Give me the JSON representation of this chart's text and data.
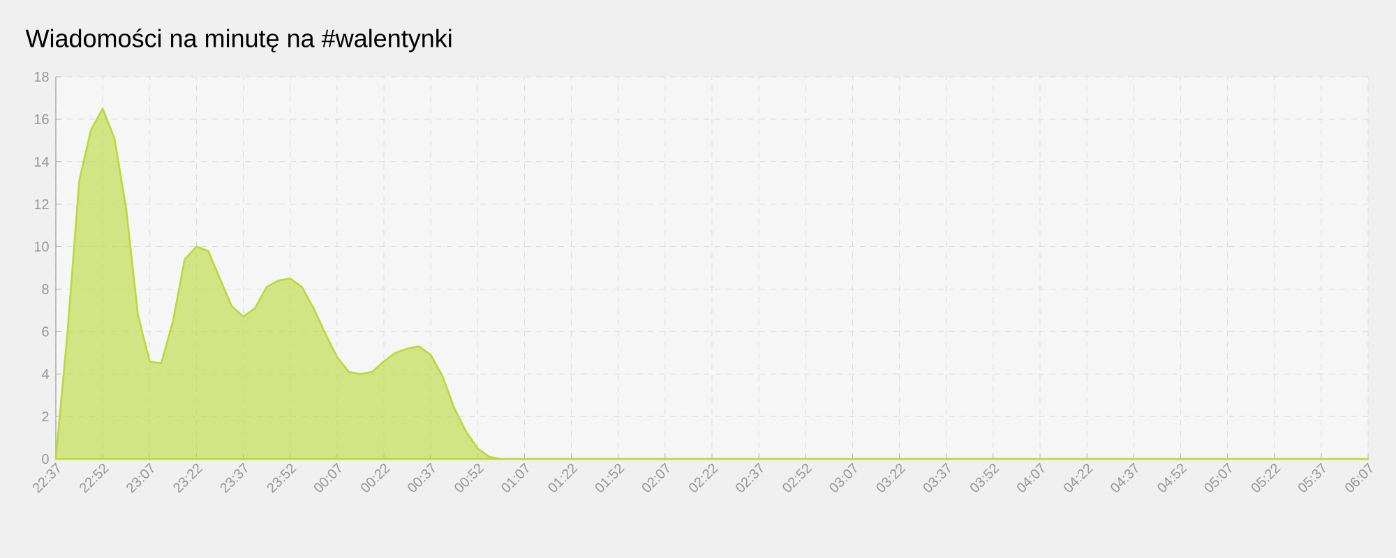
{
  "chart_data": {
    "type": "area",
    "title": "Wiadomości na minutę na #walentynki",
    "categories": [
      "22:37",
      null,
      null,
      null,
      "22:52",
      null,
      null,
      null,
      "23:07",
      null,
      null,
      null,
      "23:22",
      null,
      null,
      null,
      "23:37",
      null,
      null,
      null,
      "23:52",
      null,
      null,
      null,
      "00:07",
      null,
      null,
      null,
      "00:22",
      null,
      null,
      null,
      "00:37",
      null,
      null,
      null,
      "00:52",
      null,
      null,
      null,
      "01:07",
      null,
      null,
      null,
      "01:22",
      null,
      null,
      null,
      "01:52",
      null,
      null,
      null,
      "02:07",
      null,
      null,
      null,
      "02:22",
      null,
      null,
      null,
      "02:37",
      null,
      null,
      null,
      "02:52",
      null,
      null,
      null,
      "03:07",
      null,
      null,
      null,
      "03:22",
      null,
      null,
      null,
      "03:37",
      null,
      null,
      null,
      "03:52",
      null,
      null,
      null,
      "04:07",
      null,
      null,
      null,
      "04:22",
      null,
      null,
      null,
      "04:37",
      null,
      null,
      null,
      "04:52",
      null,
      null,
      null,
      "05:07",
      null,
      null,
      null,
      "05:22",
      null,
      null,
      null,
      "05:37",
      null,
      null,
      null,
      "06:07"
    ],
    "values": [
      0,
      6,
      13.1,
      15.5,
      16.5,
      15.1,
      11.8,
      6.8,
      4.6,
      4.5,
      6.5,
      9.4,
      10,
      9.8,
      8.5,
      7.2,
      6.7,
      7.1,
      8.1,
      8.4,
      8.5,
      8.1,
      7.1,
      5.9,
      4.8,
      4.1,
      4,
      4.1,
      4.6,
      5,
      5.2,
      5.3,
      4.9,
      3.9,
      2.4,
      1.3,
      0.5,
      0.1,
      0,
      0,
      0,
      0,
      0,
      0,
      0,
      0,
      0,
      0,
      0,
      0,
      0,
      0,
      0,
      0,
      0,
      0,
      0,
      0,
      0,
      0,
      0,
      0,
      0,
      0,
      0,
      0,
      0,
      0,
      0,
      0,
      0,
      0,
      0,
      0,
      0,
      0,
      0,
      0,
      0,
      0,
      0,
      0,
      0,
      0,
      0,
      0,
      0,
      0,
      0,
      0,
      0,
      0,
      0,
      0,
      0,
      0,
      0,
      0,
      0,
      0,
      0,
      0,
      0,
      0,
      0,
      0,
      0,
      0,
      0,
      0,
      0,
      0,
      0
    ],
    "color": "#bcd83a",
    "ylim": [
      0,
      18
    ],
    "yticks": [
      0,
      2,
      4,
      6,
      8,
      10,
      12,
      14,
      16,
      18
    ],
    "grid": true
  }
}
